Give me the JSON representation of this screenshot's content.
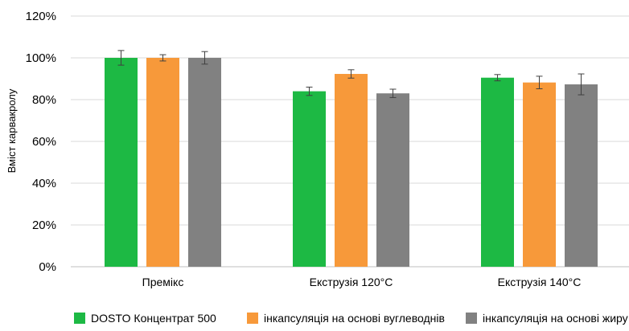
{
  "chart_data": {
    "type": "bar",
    "title": "",
    "xlabel": "",
    "ylabel": "Вміст карвакролу",
    "ylim": [
      0,
      120
    ],
    "yticks": [
      "0%",
      "20%",
      "40%",
      "60%",
      "80%",
      "100%",
      "120%"
    ],
    "grid": true,
    "legend_position": "bottom",
    "categories": [
      "Премікс",
      "Екструзія 120°C",
      "Екструзія 140°C"
    ],
    "series": [
      {
        "name": "DOSTO Концентрат 500",
        "color": "#1db944",
        "values": [
          100,
          84,
          90.5
        ],
        "errors": [
          3.5,
          2,
          1.5
        ]
      },
      {
        "name": "інкапсуляція на основі вуглеводнів",
        "color": "#f7993a",
        "values": [
          100,
          92.3,
          88.2
        ],
        "errors": [
          1.5,
          2,
          3
        ]
      },
      {
        "name": "інкапсуляція на основі жиру",
        "color": "#818181",
        "values": [
          100,
          83,
          87.3
        ],
        "errors": [
          3,
          2,
          5
        ]
      }
    ]
  }
}
